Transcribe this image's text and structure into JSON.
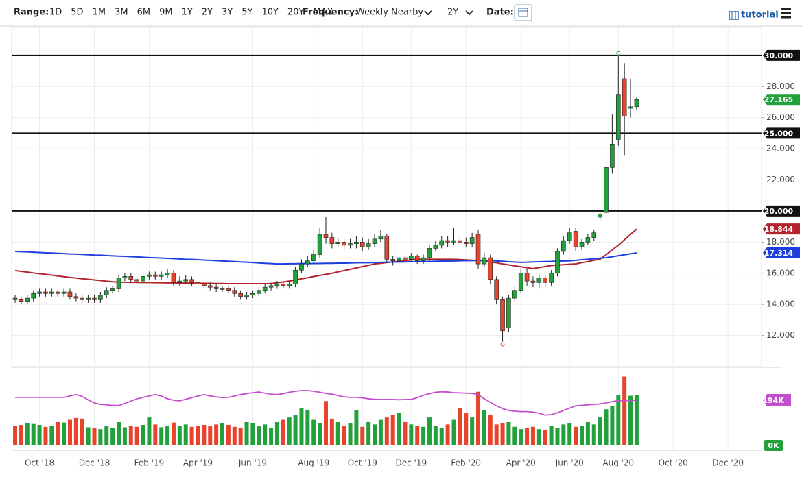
{
  "toolbar": {
    "range_label": "Range:",
    "ranges": [
      "1D",
      "5D",
      "1M",
      "3M",
      "6M",
      "9M",
      "1Y",
      "2Y",
      "3Y",
      "5Y",
      "10Y",
      "20Y",
      "MAX"
    ],
    "frequency_label": "Frequency:",
    "frequency": "Weekly Nearby",
    "period": "2Y",
    "date_label": "Date:",
    "tutorial": "tutorial"
  },
  "chart_data": {
    "type": "candlestick",
    "categories": [
      null,
      null,
      null,
      null,
      "Oct '18",
      null,
      null,
      null,
      null,
      null,
      null,
      null,
      null,
      "Dec '18",
      null,
      null,
      null,
      null,
      null,
      null,
      null,
      null,
      "Feb '19",
      null,
      null,
      null,
      null,
      null,
      null,
      null,
      "Apr '19",
      null,
      null,
      null,
      null,
      null,
      null,
      null,
      null,
      "Jun '19",
      null,
      null,
      null,
      null,
      null,
      null,
      null,
      null,
      null,
      "Aug '19",
      null,
      null,
      null,
      null,
      null,
      null,
      null,
      "Oct '19",
      null,
      null,
      null,
      null,
      null,
      null,
      null,
      "Dec '19",
      null,
      null,
      null,
      null,
      null,
      null,
      null,
      null,
      "Feb '20",
      null,
      null,
      null,
      null,
      null,
      null,
      null,
      null,
      "Apr '20",
      null,
      null,
      null,
      null,
      null,
      null,
      null,
      "Jun '20",
      null,
      null,
      null,
      null,
      null,
      null,
      null,
      "Aug '20",
      null,
      null,
      null,
      null,
      null,
      null,
      null,
      null,
      "Oct '20",
      null,
      null,
      null,
      null,
      null,
      null,
      null,
      null,
      "Dec '20",
      null,
      null,
      null,
      null,
      null
    ],
    "open": [
      14.4,
      14.3,
      14.2,
      14.4,
      14.7,
      14.8,
      14.7,
      14.8,
      14.7,
      14.8,
      14.5,
      14.4,
      14.3,
      14.4,
      14.3,
      14.6,
      14.9,
      15.0,
      15.7,
      15.8,
      15.6,
      15.5,
      15.8,
      15.9,
      15.8,
      15.9,
      16.0,
      15.4,
      15.5,
      15.6,
      15.4,
      15.3,
      15.2,
      15.1,
      15.0,
      15.0,
      14.9,
      14.7,
      14.5,
      14.6,
      14.7,
      14.9,
      15.1,
      15.2,
      15.3,
      15.2,
      15.3,
      16.2,
      16.6,
      16.8,
      17.2,
      18.5,
      18.3,
      17.9,
      18.0,
      17.8,
      17.9,
      18.0,
      17.7,
      17.9,
      18.2,
      18.4,
      16.9,
      16.8,
      17.0,
      16.9,
      17.1,
      16.8,
      17.0,
      17.6,
      17.8,
      18.1,
      18.0,
      18.1,
      18.0,
      17.9,
      18.5,
      16.6,
      17.0,
      15.6,
      14.3,
      12.5,
      14.4,
      14.9,
      16.0,
      15.5,
      15.4,
      15.7,
      15.4,
      16.0,
      17.4,
      18.1,
      18.7,
      17.7,
      18.0,
      18.3,
      19.6,
      19.9,
      22.8,
      24.6,
      28.5,
      26.6,
      26.7,
      null,
      null,
      null,
      null,
      null,
      null,
      null,
      null,
      null,
      null,
      null,
      null,
      null,
      null,
      null,
      null,
      null,
      null,
      null,
      null
    ],
    "high": [
      14.6,
      14.5,
      14.6,
      14.9,
      15.0,
      15.0,
      15.0,
      14.9,
      15.0,
      15.0,
      14.7,
      14.6,
      14.6,
      14.6,
      14.8,
      15.1,
      15.2,
      15.9,
      16.0,
      16.0,
      15.8,
      16.2,
      16.1,
      16.1,
      16.1,
      16.3,
      16.2,
      15.8,
      15.9,
      15.8,
      15.6,
      15.5,
      15.4,
      15.3,
      15.2,
      15.2,
      15.1,
      14.9,
      14.8,
      14.9,
      15.1,
      15.3,
      15.4,
      15.5,
      15.5,
      15.5,
      16.4,
      16.9,
      17.1,
      17.5,
      18.9,
      19.6,
      18.6,
      18.3,
      18.2,
      18.2,
      18.4,
      18.3,
      18.2,
      18.5,
      18.8,
      18.5,
      17.1,
      17.2,
      17.2,
      17.3,
      17.2,
      17.2,
      17.8,
      18.1,
      18.4,
      18.4,
      18.9,
      18.4,
      18.3,
      18.6,
      18.8,
      17.3,
      17.2,
      15.8,
      14.5,
      14.6,
      15.2,
      16.3,
      16.3,
      15.8,
      15.9,
      15.9,
      16.2,
      17.6,
      18.4,
      18.9,
      18.9,
      18.2,
      18.5,
      18.8,
      20.0,
      23.6,
      26.2,
      30.0,
      29.5,
      28.5,
      27.3,
      null,
      null,
      null,
      null,
      null,
      null,
      null,
      null,
      null,
      null,
      null,
      null,
      null,
      null,
      null,
      null,
      null,
      null,
      null,
      null
    ],
    "low": [
      14.1,
      14.0,
      14.0,
      14.2,
      14.5,
      14.5,
      14.5,
      14.5,
      14.5,
      14.3,
      14.2,
      14.1,
      14.1,
      14.1,
      14.1,
      14.4,
      14.7,
      14.8,
      15.5,
      15.4,
      15.3,
      15.3,
      15.6,
      15.6,
      15.6,
      15.7,
      15.2,
      15.2,
      15.3,
      15.2,
      15.1,
      15.0,
      14.9,
      14.8,
      14.8,
      14.7,
      14.5,
      14.3,
      14.3,
      14.4,
      14.5,
      14.7,
      14.9,
      15.0,
      15.0,
      15.0,
      15.1,
      16.0,
      16.4,
      16.6,
      17.0,
      17.9,
      17.6,
      17.7,
      17.5,
      17.6,
      17.6,
      17.4,
      17.5,
      17.7,
      18.0,
      16.7,
      16.5,
      16.6,
      16.6,
      16.7,
      16.6,
      16.6,
      16.8,
      17.4,
      17.6,
      17.7,
      17.8,
      17.8,
      17.7,
      17.7,
      16.3,
      16.4,
      15.3,
      14.0,
      11.6,
      12.2,
      14.2,
      14.7,
      15.2,
      15.1,
      15.0,
      15.1,
      15.2,
      15.8,
      17.2,
      17.9,
      17.4,
      17.5,
      17.8,
      18.1,
      19.4,
      19.6,
      22.4,
      24.2,
      23.6,
      26.0,
      26.5,
      null,
      null,
      null,
      null,
      null,
      null,
      null,
      null,
      null,
      null,
      null,
      null,
      null,
      null,
      null,
      null,
      null,
      null,
      null,
      null
    ],
    "close": [
      14.3,
      14.2,
      14.4,
      14.7,
      14.8,
      14.7,
      14.8,
      14.7,
      14.8,
      14.5,
      14.4,
      14.3,
      14.4,
      14.3,
      14.6,
      14.9,
      15.0,
      15.7,
      15.8,
      15.6,
      15.5,
      15.8,
      15.9,
      15.8,
      15.9,
      16.0,
      15.4,
      15.5,
      15.6,
      15.4,
      15.3,
      15.2,
      15.1,
      15.0,
      15.0,
      14.9,
      14.7,
      14.5,
      14.6,
      14.7,
      14.9,
      15.1,
      15.2,
      15.3,
      15.2,
      15.3,
      16.2,
      16.6,
      16.8,
      17.2,
      18.5,
      18.3,
      17.9,
      18.0,
      17.8,
      17.9,
      18.0,
      17.7,
      17.9,
      18.2,
      18.4,
      16.9,
      16.8,
      17.0,
      16.9,
      17.1,
      16.8,
      17.0,
      17.6,
      17.8,
      18.1,
      18.0,
      18.1,
      18.0,
      17.9,
      18.3,
      16.6,
      17.0,
      15.6,
      14.3,
      12.3,
      14.4,
      14.9,
      16.0,
      15.5,
      15.4,
      15.7,
      15.4,
      16.0,
      17.4,
      18.1,
      18.6,
      17.7,
      18.0,
      18.3,
      18.6,
      19.8,
      22.8,
      24.3,
      27.5,
      26.1,
      26.7,
      27.165,
      null,
      null,
      null,
      null,
      null,
      null,
      null,
      null,
      null,
      null,
      null,
      null,
      null,
      null,
      null,
      null,
      null,
      null,
      null,
      null
    ],
    "close_label": "27.165",
    "up_color": "#22a03c",
    "down_color": "#e8432d",
    "ylim": [
      10,
      31.8
    ],
    "yticks": [
      {
        "value": 12,
        "label": "12.000"
      },
      {
        "value": 14,
        "label": "14.000"
      },
      {
        "value": 16,
        "label": "16.000"
      },
      {
        "value": 18,
        "label": "18.000"
      },
      {
        "value": 22,
        "label": "22.000"
      },
      {
        "value": 24,
        "label": "24.000"
      },
      {
        "value": 26,
        "label": "26.000"
      },
      {
        "value": 28,
        "label": "28.000"
      }
    ],
    "levels": [
      {
        "value": 30,
        "label": "30.000"
      },
      {
        "value": 25,
        "label": "25.000"
      },
      {
        "value": 20,
        "label": "20.000"
      }
    ],
    "grid": true,
    "moving_averages": [
      {
        "color": "#b3232b",
        "last_label": "18.844",
        "values": [
          16.17,
          16.12,
          16.07,
          16.02,
          15.97,
          15.93,
          15.88,
          15.83,
          15.78,
          15.73,
          15.69,
          15.65,
          15.61,
          15.57,
          15.53,
          15.49,
          15.45,
          15.42,
          15.42,
          15.41,
          15.41,
          15.4,
          15.4,
          15.39,
          15.39,
          15.38,
          15.38,
          15.37,
          15.37,
          15.36,
          15.36,
          15.35,
          15.35,
          15.34,
          15.34,
          15.33,
          15.33,
          15.33,
          15.33,
          15.33,
          15.33,
          15.33,
          15.33,
          15.39,
          15.44,
          15.5,
          15.57,
          15.64,
          15.71,
          15.79,
          15.86,
          15.93,
          16.0,
          16.09,
          16.17,
          16.26,
          16.34,
          16.43,
          16.51,
          16.6,
          16.64,
          16.69,
          16.73,
          16.77,
          16.81,
          16.86,
          16.9,
          16.9,
          16.9,
          16.9,
          16.9,
          16.9,
          16.9,
          16.88,
          16.86,
          16.84,
          16.82,
          16.8,
          16.73,
          16.67,
          16.6,
          16.54,
          16.48,
          16.42,
          16.36,
          16.3,
          16.37,
          16.43,
          16.5,
          16.53,
          16.55,
          16.58,
          16.6,
          16.68,
          16.75,
          16.83,
          16.9,
          17.2,
          17.5,
          17.8,
          18.15,
          18.5,
          18.844,
          null,
          null,
          null,
          null,
          null,
          null,
          null,
          null,
          null,
          null,
          null,
          null,
          null,
          null,
          null,
          null,
          null,
          null,
          null,
          null
        ]
      },
      {
        "color": "#1d3fe0",
        "last_label": "17.314",
        "values": [
          17.4,
          17.38,
          17.37,
          17.35,
          17.33,
          17.31,
          17.3,
          17.28,
          17.26,
          17.24,
          17.23,
          17.21,
          17.19,
          17.17,
          17.16,
          17.14,
          17.12,
          17.1,
          17.09,
          17.07,
          17.05,
          17.03,
          17.01,
          16.99,
          16.98,
          16.96,
          16.94,
          16.92,
          16.9,
          16.89,
          16.87,
          16.85,
          16.83,
          16.81,
          16.79,
          16.77,
          16.75,
          16.73,
          16.71,
          16.69,
          16.66,
          16.64,
          16.62,
          16.6,
          16.6,
          16.61,
          16.61,
          16.62,
          16.62,
          16.63,
          16.63,
          16.64,
          16.64,
          16.65,
          16.65,
          16.66,
          16.67,
          16.68,
          16.68,
          16.69,
          16.7,
          16.71,
          16.72,
          16.72,
          16.73,
          16.74,
          16.75,
          16.75,
          16.76,
          16.77,
          16.78,
          16.78,
          16.79,
          16.8,
          16.81,
          16.81,
          16.82,
          16.83,
          16.81,
          16.79,
          16.77,
          16.74,
          16.72,
          16.7,
          16.71,
          16.73,
          16.74,
          16.75,
          16.76,
          16.78,
          16.79,
          16.8,
          16.83,
          16.87,
          16.9,
          16.93,
          16.97,
          17.0,
          17.06,
          17.13,
          17.19,
          17.25,
          17.314,
          null,
          null,
          null,
          null,
          null,
          null,
          null,
          null,
          null,
          null,
          null,
          null,
          null,
          null,
          null,
          null,
          null,
          null,
          null,
          null
        ]
      }
    ],
    "volume": {
      "ylim": [
        0,
        332
      ],
      "yticks": [
        {
          "value": 0,
          "label": "0K"
        }
      ],
      "values": [
        85,
        88,
        95,
        92,
        88,
        80,
        85,
        100,
        98,
        110,
        118,
        115,
        78,
        75,
        70,
        82,
        75,
        100,
        78,
        85,
        80,
        88,
        120,
        90,
        78,
        85,
        98,
        85,
        90,
        80,
        85,
        88,
        82,
        90,
        95,
        88,
        80,
        75,
        100,
        95,
        82,
        90,
        75,
        100,
        110,
        120,
        130,
        160,
        150,
        110,
        95,
        190,
        115,
        100,
        85,
        95,
        150,
        80,
        100,
        90,
        110,
        120,
        130,
        140,
        100,
        90,
        85,
        80,
        120,
        85,
        75,
        90,
        110,
        160,
        140,
        120,
        230,
        150,
        130,
        90,
        95,
        100,
        80,
        70,
        75,
        80,
        70,
        65,
        85,
        75,
        90,
        95,
        80,
        85,
        100,
        90,
        120,
        155,
        170,
        215,
        295,
        213,
        215,
        null,
        null,
        null,
        null,
        null,
        null,
        null,
        null,
        null,
        null,
        null,
        null,
        null,
        null,
        null,
        null,
        null,
        null,
        null,
        null
      ],
      "average": {
        "color": "#c44fcc",
        "last_label": "194K",
        "values": [
          206,
          206,
          206,
          206,
          206,
          206,
          206,
          206,
          206,
          212,
          218,
          210,
          195,
          182,
          176,
          174,
          172,
          171,
          180,
          190,
          200,
          206,
          212,
          218,
          212,
          200,
          194,
          191,
          198,
          205,
          212,
          218,
          212,
          208,
          205,
          206,
          212,
          218,
          222,
          226,
          229,
          224,
          220,
          218,
          222,
          228,
          232,
          235,
          235,
          232,
          228,
          223,
          220,
          214,
          208,
          206,
          206,
          204,
          200,
          198,
          197,
          197,
          197,
          196,
          197,
          197,
          205,
          215,
          222,
          228,
          230,
          229,
          226,
          225,
          224,
          223,
          218,
          200,
          185,
          170,
          158,
          150,
          147,
          145,
          145,
          143,
          138,
          130,
          132,
          140,
          150,
          160,
          170,
          172,
          174,
          176,
          178,
          182,
          188,
          192,
          192,
          193,
          194,
          null,
          null,
          null,
          null,
          null,
          null,
          null,
          null,
          null,
          null,
          null,
          null,
          null,
          null,
          null,
          null,
          null,
          null,
          null,
          null
        ]
      }
    }
  }
}
